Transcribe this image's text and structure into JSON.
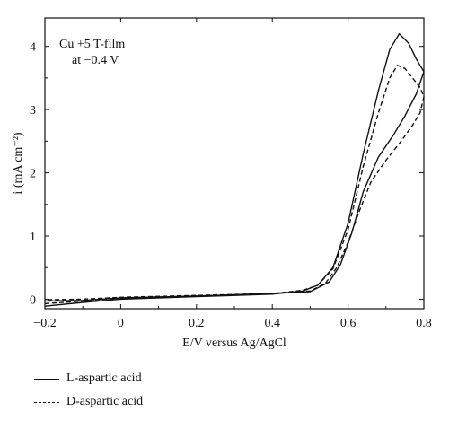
{
  "chart_data": {
    "type": "line",
    "annotation": [
      "Cu +5 T-film",
      "at −0.4 V"
    ],
    "ylabel": "i (mA cm⁻²)",
    "xlabel": "E/V versus Ag/AgCl",
    "xlim": [
      -0.2,
      0.8
    ],
    "ylim": [
      -0.15,
      4.45
    ],
    "x_ticks": [
      "−0.2",
      "0",
      "0.2",
      "0.4",
      "0.6",
      "0.8"
    ],
    "y_ticks": [
      "0",
      "1",
      "2",
      "3",
      "4"
    ],
    "grid": false,
    "series": [
      {
        "name": "L-aspartic acid",
        "style": "solid",
        "points": [
          [
            -0.2,
            -0.11
          ],
          [
            -0.1,
            -0.05
          ],
          [
            0.0,
            0.0
          ],
          [
            0.2,
            0.04
          ],
          [
            0.4,
            0.08
          ],
          [
            0.48,
            0.13
          ],
          [
            0.52,
            0.22
          ],
          [
            0.56,
            0.5
          ],
          [
            0.6,
            1.2
          ],
          [
            0.64,
            2.3
          ],
          [
            0.68,
            3.3
          ],
          [
            0.71,
            3.95
          ],
          [
            0.735,
            4.2
          ],
          [
            0.76,
            4.05
          ],
          [
            0.78,
            3.8
          ],
          [
            0.8,
            3.6
          ],
          [
            0.78,
            3.25
          ],
          [
            0.75,
            2.9
          ],
          [
            0.72,
            2.6
          ],
          [
            0.68,
            2.25
          ],
          [
            0.64,
            1.7
          ],
          [
            0.61,
            1.05
          ],
          [
            0.58,
            0.55
          ],
          [
            0.55,
            0.27
          ],
          [
            0.5,
            0.12
          ],
          [
            0.4,
            0.09
          ],
          [
            0.2,
            0.05
          ],
          [
            0.0,
            0.02
          ],
          [
            -0.1,
            -0.02
          ],
          [
            -0.2,
            -0.03
          ]
        ]
      },
      {
        "name": "D-aspartic acid",
        "style": "dashed",
        "points": [
          [
            -0.2,
            -0.07
          ],
          [
            -0.1,
            -0.03
          ],
          [
            0.0,
            0.02
          ],
          [
            0.2,
            0.05
          ],
          [
            0.4,
            0.09
          ],
          [
            0.48,
            0.14
          ],
          [
            0.52,
            0.22
          ],
          [
            0.56,
            0.48
          ],
          [
            0.6,
            1.1
          ],
          [
            0.64,
            2.1
          ],
          [
            0.68,
            2.95
          ],
          [
            0.71,
            3.5
          ],
          [
            0.73,
            3.7
          ],
          [
            0.75,
            3.65
          ],
          [
            0.77,
            3.5
          ],
          [
            0.79,
            3.35
          ],
          [
            0.8,
            3.2
          ],
          [
            0.79,
            2.95
          ],
          [
            0.77,
            2.75
          ],
          [
            0.74,
            2.5
          ],
          [
            0.7,
            2.2
          ],
          [
            0.66,
            1.85
          ],
          [
            0.63,
            1.4
          ],
          [
            0.6,
            0.9
          ],
          [
            0.57,
            0.5
          ],
          [
            0.54,
            0.25
          ],
          [
            0.5,
            0.13
          ],
          [
            0.4,
            0.09
          ],
          [
            0.2,
            0.06
          ],
          [
            0.0,
            0.03
          ],
          [
            -0.1,
            0.0
          ],
          [
            -0.2,
            -0.01
          ]
        ]
      }
    ]
  }
}
